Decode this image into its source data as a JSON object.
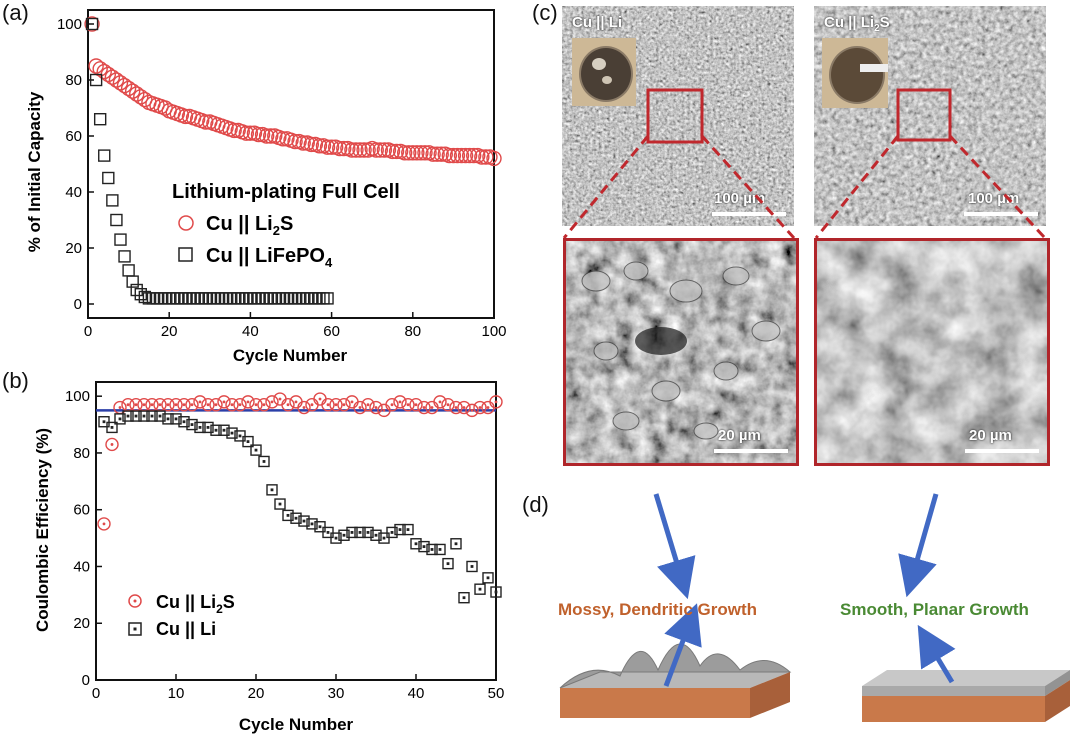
{
  "panels": {
    "a": "(a)",
    "b": "(b)",
    "c": "(c)",
    "d": "(d)"
  },
  "chart_data": [
    {
      "type": "scatter",
      "panel": "(a)",
      "xlabel": "Cycle Number",
      "ylabel": "% of Initial Capacity",
      "xlim": [
        0,
        100
      ],
      "ylim": [
        -5,
        105
      ],
      "xticks": [
        0,
        20,
        40,
        60,
        80,
        100
      ],
      "yticks": [
        0,
        20,
        40,
        60,
        80,
        100
      ],
      "legend_title": "Lithium-plating Full Cell",
      "legend_position": "center-right",
      "series": [
        {
          "name": "Cu || Li2S",
          "name_main": "Cu || Li",
          "name_sub": "2",
          "name_tail": "S",
          "marker": "circle",
          "color": "#e04a4a",
          "x": [
            1,
            2,
            3,
            4,
            5,
            6,
            7,
            8,
            9,
            10,
            11,
            12,
            13,
            14,
            15,
            16,
            17,
            18,
            19,
            20,
            21,
            22,
            23,
            24,
            25,
            26,
            27,
            28,
            29,
            30,
            31,
            32,
            33,
            34,
            35,
            36,
            37,
            38,
            39,
            40,
            41,
            42,
            43,
            44,
            45,
            46,
            47,
            48,
            49,
            50,
            51,
            52,
            53,
            54,
            55,
            56,
            57,
            58,
            59,
            60,
            61,
            62,
            63,
            64,
            65,
            66,
            67,
            68,
            69,
            70,
            71,
            72,
            73,
            74,
            75,
            76,
            77,
            78,
            79,
            80,
            81,
            82,
            83,
            84,
            85,
            86,
            87,
            88,
            89,
            90,
            91,
            92,
            93,
            94,
            95,
            96,
            97,
            98,
            99,
            100
          ],
          "y": [
            100,
            85,
            84,
            83,
            82,
            81,
            80,
            79,
            78,
            77,
            76,
            75,
            74,
            73,
            72,
            71.5,
            71,
            70.5,
            70,
            69,
            68.5,
            68,
            67.5,
            67,
            67,
            66.5,
            66,
            65.5,
            65,
            65,
            64.5,
            64,
            63.5,
            63,
            62.5,
            62,
            62,
            61.5,
            61,
            61,
            61,
            60.5,
            60.5,
            60,
            60,
            60,
            59.5,
            59,
            59,
            58.5,
            58,
            58,
            57.5,
            57.5,
            57,
            57,
            56.5,
            56.5,
            56,
            56,
            56,
            55.5,
            55.5,
            55.5,
            55,
            55,
            55,
            55,
            55,
            55.5,
            55,
            55,
            55,
            55,
            54.5,
            54.5,
            54.5,
            54,
            54,
            54,
            54,
            54,
            54,
            54,
            53.5,
            53.5,
            53.5,
            53.5,
            53,
            53,
            53,
            53,
            53,
            53,
            53,
            53,
            52.5,
            52.5,
            52.5,
            52
          ]
        },
        {
          "name": "Cu || LiFePO4",
          "name_main": "Cu || LiFePO",
          "name_sub": "4",
          "name_tail": "",
          "marker": "square",
          "color": "#222222",
          "x": [
            1,
            2,
            3,
            4,
            5,
            6,
            7,
            8,
            9,
            10,
            11,
            12,
            13,
            14,
            15,
            16,
            17,
            18,
            19,
            20,
            21,
            22,
            23,
            24,
            25,
            26,
            27,
            28,
            29,
            30,
            31,
            32,
            33,
            34,
            35,
            36,
            37,
            38,
            39,
            40,
            41,
            42,
            43,
            44,
            45,
            46,
            47,
            48,
            49,
            50,
            51,
            52,
            53,
            54,
            55,
            56,
            57,
            58,
            59
          ],
          "y": [
            100,
            80,
            66,
            53,
            45,
            37,
            30,
            23,
            17,
            12,
            8,
            5,
            3.5,
            2.5,
            2,
            2,
            2,
            2,
            2,
            2,
            2,
            2,
            2,
            2,
            2,
            2,
            2,
            2,
            2,
            2,
            2,
            2,
            2,
            2,
            2,
            2,
            2,
            2,
            2,
            2,
            2,
            2,
            2,
            2,
            2,
            2,
            2,
            2,
            2,
            2,
            2,
            2,
            2,
            2,
            2,
            2,
            2,
            2,
            2
          ]
        }
      ]
    },
    {
      "type": "scatter",
      "panel": "(b)",
      "xlabel": "Cycle Number",
      "ylabel": "Coulombic Efficiency (%)",
      "xlim": [
        0,
        50
      ],
      "ylim": [
        0,
        105
      ],
      "xticks": [
        0,
        10,
        20,
        30,
        40,
        50
      ],
      "yticks": [
        0,
        20,
        40,
        60,
        80,
        100
      ],
      "reference_line": {
        "y": 95,
        "color": "#2b3fa8"
      },
      "legend_position": "lower-left",
      "series": [
        {
          "name": "Cu || Li2S",
          "name_main": "Cu || Li",
          "name_sub": "2",
          "name_tail": "S",
          "marker": "circle-dot",
          "color": "#e04a4a",
          "x": [
            1,
            2,
            3,
            4,
            5,
            6,
            7,
            8,
            9,
            10,
            11,
            12,
            13,
            14,
            15,
            16,
            17,
            18,
            19,
            20,
            21,
            22,
            23,
            24,
            25,
            26,
            27,
            28,
            29,
            30,
            31,
            32,
            33,
            34,
            35,
            36,
            37,
            38,
            39,
            40,
            41,
            42,
            43,
            44,
            45,
            46,
            47,
            48,
            49,
            50
          ],
          "y": [
            55,
            83,
            96,
            97,
            97,
            97,
            97,
            97,
            97,
            97,
            97,
            97,
            98,
            97,
            97,
            98,
            97,
            97,
            98,
            97,
            97,
            98,
            99,
            97,
            98,
            96,
            97,
            99,
            97,
            97,
            97,
            98,
            96,
            97,
            96,
            95,
            97,
            98,
            97,
            97,
            96,
            96,
            98,
            97,
            96,
            96,
            95,
            96,
            96,
            98
          ]
        },
        {
          "name": "Cu || Li",
          "name_main": "Cu || Li",
          "name_sub": "",
          "name_tail": "",
          "marker": "square-dot",
          "color": "#222222",
          "x": [
            1,
            2,
            3,
            4,
            5,
            6,
            7,
            8,
            9,
            10,
            11,
            12,
            13,
            14,
            15,
            16,
            17,
            18,
            19,
            20,
            21,
            22,
            23,
            24,
            25,
            26,
            27,
            28,
            29,
            30,
            31,
            32,
            33,
            34,
            35,
            36,
            37,
            38,
            39,
            40,
            41,
            42,
            43,
            44,
            45,
            46,
            47,
            48,
            49,
            50
          ],
          "y": [
            91,
            89,
            92,
            93,
            93,
            93,
            93,
            93,
            92,
            92,
            91,
            90,
            89,
            89,
            88,
            88,
            87,
            86,
            84,
            81,
            77,
            67,
            62,
            58,
            57,
            56,
            55,
            54,
            52,
            50,
            51,
            52,
            52,
            52,
            51,
            50,
            52,
            53,
            53,
            48,
            47,
            46,
            46,
            41,
            48,
            29,
            40,
            32,
            36,
            31
          ]
        }
      ]
    }
  ],
  "sem": {
    "left_top": {
      "title_main": "Cu || Li",
      "title_sub": "",
      "scale": "100 µm"
    },
    "right_top": {
      "title_main": "Cu || Li",
      "title_sub": "2",
      "title_tail": "S",
      "scale": "100 µm"
    },
    "left_bottom": {
      "scale": "20 µm"
    },
    "right_bottom": {
      "scale": "20 µm"
    }
  },
  "growth": {
    "left_label": "Mossy, Dendritic Growth",
    "left_color": "#c0612c",
    "right_label": "Smooth, Planar Growth",
    "right_color": "#4a8a34",
    "arrow_color": "#4169c4",
    "copper_color": "#c9794a"
  }
}
